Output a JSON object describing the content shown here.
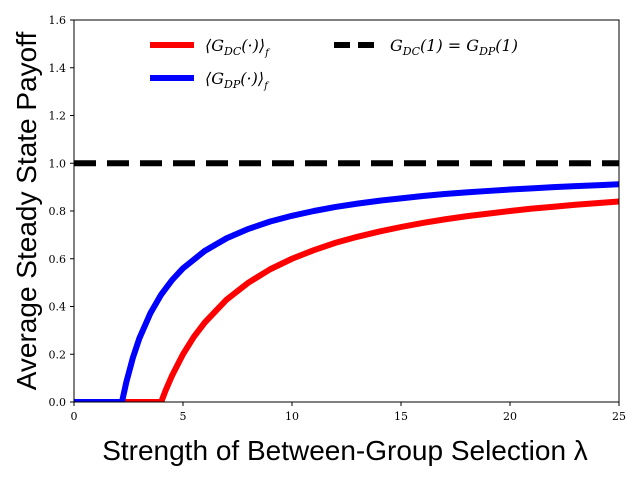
{
  "chart_data": {
    "type": "line",
    "title": "",
    "xlabel": "Strength of Between-Group Selection λ",
    "ylabel": "Average Steady State Payoff",
    "xlim": [
      0,
      25
    ],
    "ylim": [
      0,
      1.6
    ],
    "xticks": [
      0,
      5,
      10,
      15,
      20,
      25
    ],
    "yticks": [
      0.0,
      0.2,
      0.4,
      0.6,
      0.8,
      1.0,
      1.2,
      1.4,
      1.6
    ],
    "xtick_labels": [
      "0",
      "5",
      "10",
      "15",
      "20",
      "25"
    ],
    "ytick_labels": [
      "0.0",
      "0.2",
      "0.4",
      "0.6",
      "0.8",
      "1.0",
      "1.2",
      "1.4",
      "1.6"
    ],
    "legend_position": "top",
    "series": [
      {
        "name": "⟨G_DC(·)⟩_{f_θ^λ}",
        "legend_label": "⟨G",
        "legend_sub": "DC",
        "legend_tail": "(·)⟩",
        "legend_sub2": "f",
        "color": "#ff0000",
        "style": "solid",
        "x": [
          0,
          2,
          4,
          4.2,
          4.5,
          5,
          5.5,
          6,
          7,
          8,
          9,
          10,
          11,
          12,
          13,
          14,
          15,
          16,
          17,
          18,
          19,
          20,
          21,
          22,
          23,
          24,
          25
        ],
        "y": [
          0,
          0,
          0,
          0.048,
          0.111,
          0.2,
          0.273,
          0.333,
          0.429,
          0.5,
          0.556,
          0.6,
          0.636,
          0.667,
          0.692,
          0.714,
          0.733,
          0.75,
          0.765,
          0.778,
          0.789,
          0.8,
          0.81,
          0.818,
          0.826,
          0.833,
          0.84
        ]
      },
      {
        "name": "⟨G_DP(·)⟩_{f_θ^λ}",
        "legend_label": "⟨G",
        "legend_sub": "DP",
        "legend_tail": "(·)⟩",
        "legend_sub2": "f",
        "color": "#0000ff",
        "style": "solid",
        "x": [
          0,
          1,
          2.2,
          2.4,
          2.7,
          3,
          3.5,
          4,
          4.5,
          5,
          6,
          7,
          8,
          9,
          10,
          11,
          12,
          13,
          14,
          15,
          16,
          17,
          18,
          19,
          20,
          21,
          22,
          23,
          24,
          25
        ],
        "y": [
          0,
          0,
          0,
          0.083,
          0.185,
          0.267,
          0.371,
          0.45,
          0.511,
          0.56,
          0.633,
          0.686,
          0.725,
          0.756,
          0.78,
          0.8,
          0.817,
          0.831,
          0.843,
          0.853,
          0.863,
          0.871,
          0.878,
          0.884,
          0.89,
          0.895,
          0.9,
          0.904,
          0.908,
          0.912
        ]
      },
      {
        "name": "G_DC(1) = G_DP(1)",
        "legend_label": "G",
        "legend_sub": "DC",
        "legend_tail": "(1) = G",
        "legend_sub2": "DP",
        "legend_end": "(1)",
        "color": "#000000",
        "style": "dashed",
        "x": [
          0,
          25
        ],
        "y": [
          1.0,
          1.0
        ]
      }
    ]
  }
}
